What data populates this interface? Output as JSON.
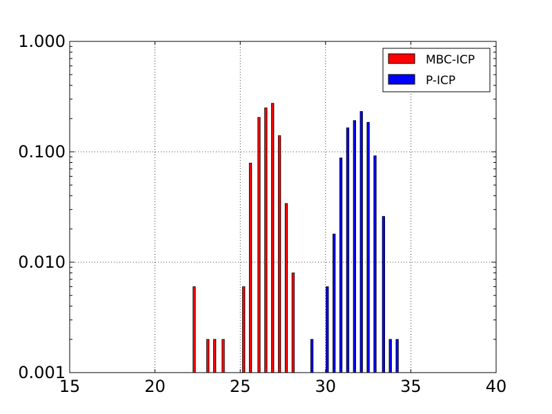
{
  "chart_data": {
    "type": "bar",
    "title": "",
    "xlabel": "",
    "ylabel": "",
    "xlim": [
      15,
      40
    ],
    "ylim": [
      0.001,
      1.0
    ],
    "yscale": "log",
    "grid": true,
    "legend_position": "top-right",
    "x_ticks": [
      "15",
      "20",
      "25",
      "30",
      "35",
      "40"
    ],
    "y_ticks": [
      "0.001",
      "0.010",
      "0.100",
      "1.000"
    ],
    "series": [
      {
        "name": "MBC-ICP",
        "color": "#ff0000",
        "x": [
          22.3,
          23.1,
          23.5,
          24.0,
          25.2,
          25.6,
          26.1,
          26.5,
          26.9,
          27.3,
          27.7,
          28.1
        ],
        "values": [
          0.006,
          0.002,
          0.002,
          0.002,
          0.006,
          0.079,
          0.205,
          0.25,
          0.275,
          0.14,
          0.034,
          0.008
        ]
      },
      {
        "name": "P-ICP",
        "color": "#0000ff",
        "x": [
          29.2,
          30.1,
          30.5,
          30.9,
          31.3,
          31.7,
          32.1,
          32.5,
          32.9,
          33.4,
          33.8,
          34.2
        ],
        "values": [
          0.002,
          0.006,
          0.018,
          0.088,
          0.165,
          0.192,
          0.232,
          0.185,
          0.092,
          0.026,
          0.002,
          0.002
        ]
      }
    ]
  }
}
